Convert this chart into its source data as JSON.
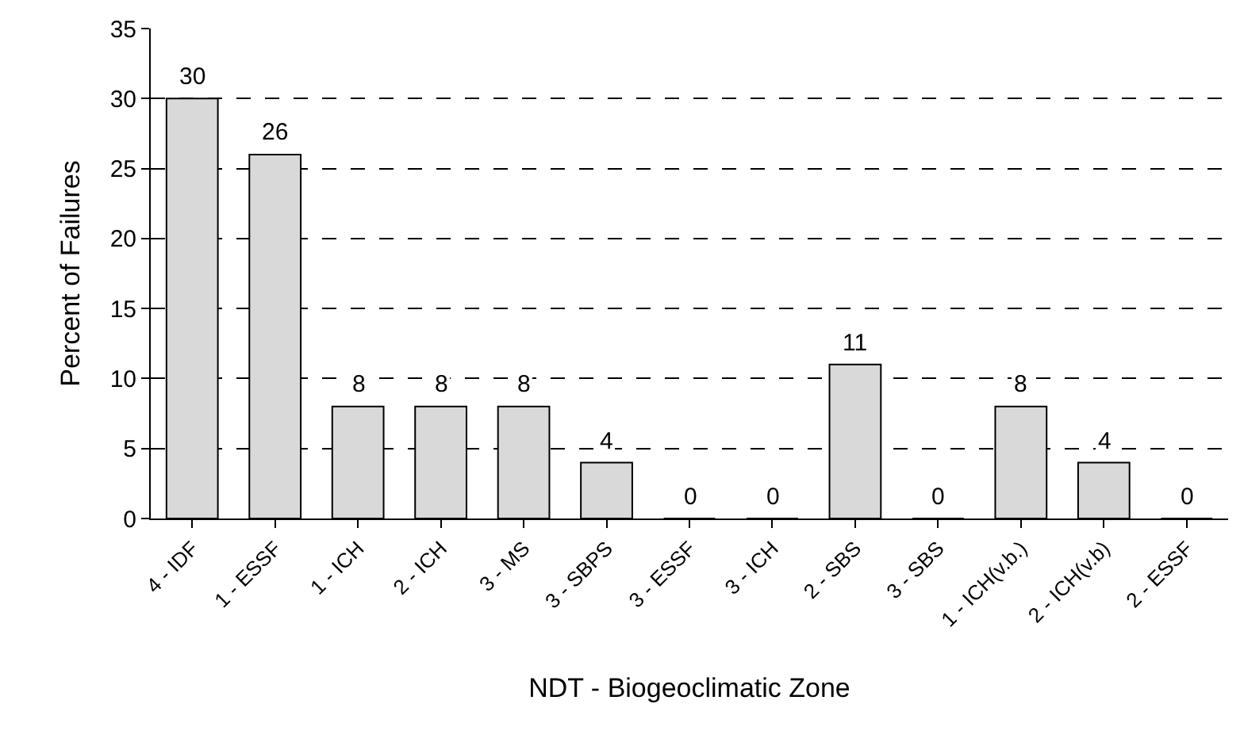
{
  "chart_data": {
    "type": "bar",
    "xlabel": "NDT - Biogeoclimatic Zone",
    "ylabel": "Percent of Failures",
    "categories": [
      "4 - IDF",
      "1 - ESSF",
      "1 - ICH",
      "2 - ICH",
      "3 - MS",
      "3 - SBPS",
      "3 - ESSF",
      "3 - ICH",
      "2 - SBS",
      "3 - SBS",
      "1 - ICH(v.b.)",
      "2 - ICH(v.b)",
      "2 - ESSF"
    ],
    "values": [
      30,
      26,
      8,
      8,
      8,
      4,
      0,
      0,
      11,
      0,
      8,
      4,
      0
    ],
    "color": "#d9d9d9",
    "ylim": [
      0,
      35
    ],
    "yticks": [
      0,
      5,
      10,
      15,
      20,
      25,
      30,
      35
    ],
    "grid": "y",
    "data_labels": true,
    "legend": false
  }
}
